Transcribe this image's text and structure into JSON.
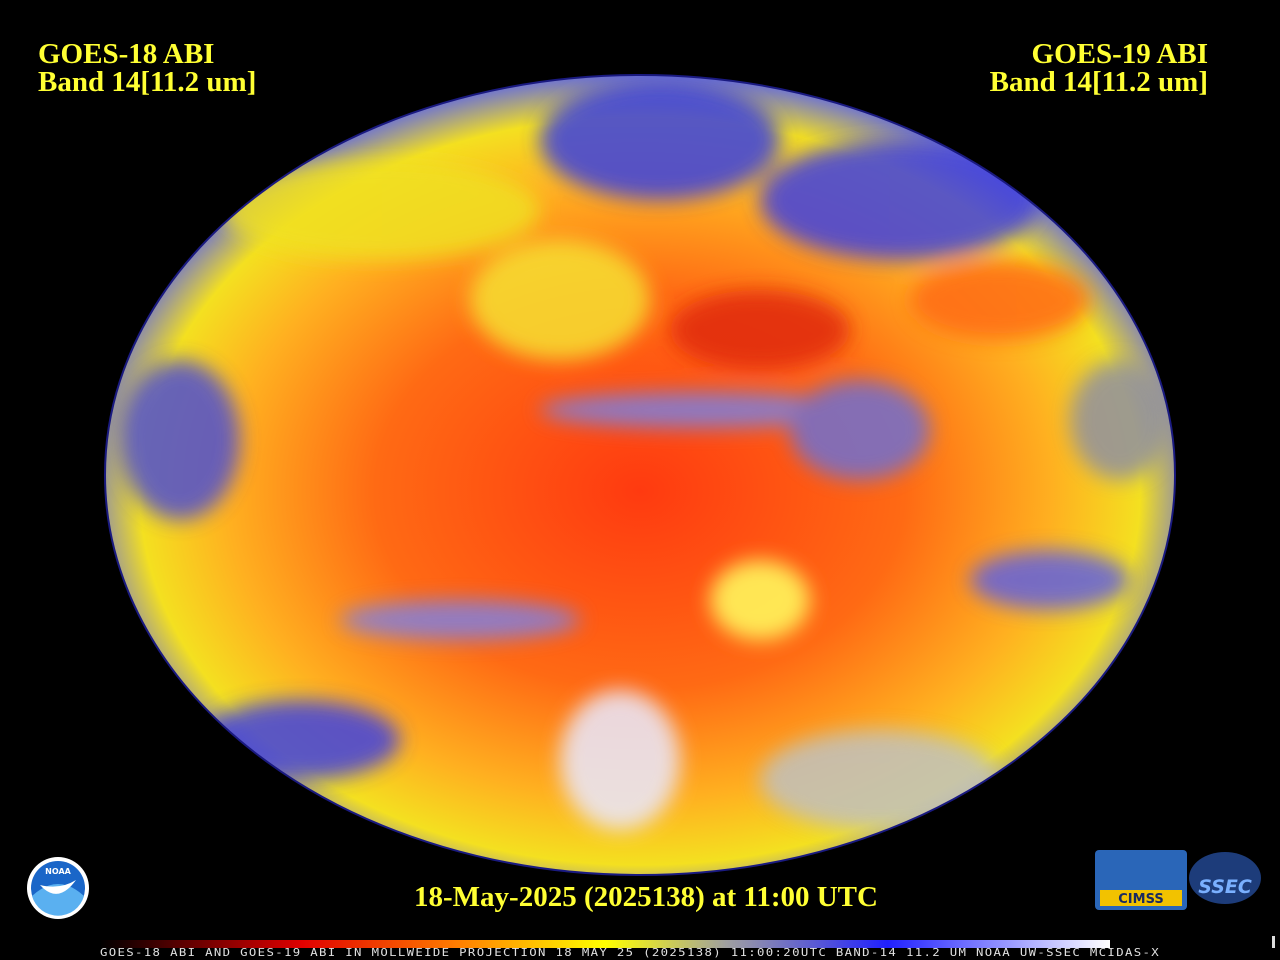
{
  "header": {
    "left": {
      "satellite": "GOES-18 ABI",
      "band": "Band 14[11.2 um]"
    },
    "right": {
      "satellite": "GOES-19 ABI",
      "band": "Band 14[11.2 um]"
    }
  },
  "timestamp": "18-May-2025 (2025138) at 11:00 UTC",
  "footer": "GOES-18 ABI AND GOES-19 ABI IN MOLLWEIDE PROJECTION 18 MAY 25 (2025138) 11:00:20UTC BAND-14 11.2 UM NOAA UW-SSEC MCIDAS-X",
  "logos": {
    "noaa": "NOAA",
    "cimss": "CIMSS",
    "ssec": "SSEC"
  }
}
